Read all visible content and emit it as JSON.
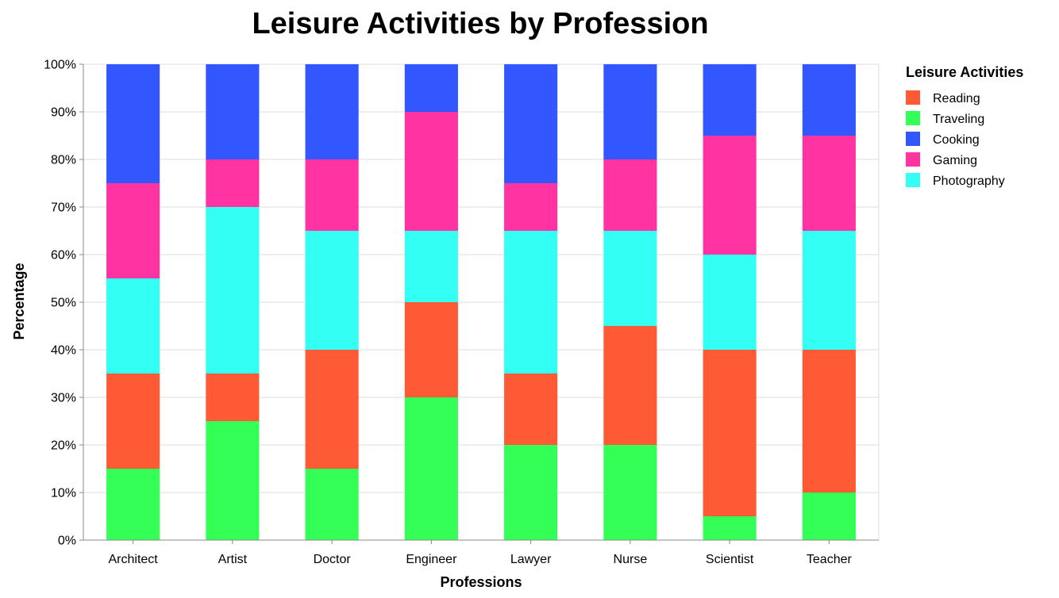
{
  "chart_data": {
    "type": "bar",
    "stacked": true,
    "normalized": true,
    "title": "Leisure Activities by Profession",
    "xlabel": "Professions",
    "ylabel": "Percentage",
    "ylim": [
      0,
      100
    ],
    "y_ticks": [
      "0%",
      "10%",
      "20%",
      "30%",
      "40%",
      "50%",
      "60%",
      "70%",
      "80%",
      "90%",
      "100%"
    ],
    "grid": true,
    "legend_title": "Leisure Activities",
    "legend_position": "right",
    "categories": [
      "Architect",
      "Artist",
      "Doctor",
      "Engineer",
      "Lawyer",
      "Nurse",
      "Scientist",
      "Teacher"
    ],
    "stack_order": [
      "Traveling",
      "Reading",
      "Photography",
      "Gaming",
      "Cooking"
    ],
    "series": [
      {
        "name": "Reading",
        "color": "#ff5a36",
        "values": [
          20,
          10,
          25,
          20,
          15,
          25,
          35,
          30
        ]
      },
      {
        "name": "Traveling",
        "color": "#33ff57",
        "values": [
          15,
          25,
          15,
          30,
          20,
          20,
          5,
          10
        ]
      },
      {
        "name": "Cooking",
        "color": "#3357ff",
        "values": [
          25,
          20,
          20,
          10,
          25,
          20,
          15,
          15
        ]
      },
      {
        "name": "Gaming",
        "color": "#ff33a1",
        "values": [
          20,
          10,
          15,
          25,
          10,
          15,
          25,
          20
        ]
      },
      {
        "name": "Photography",
        "color": "#33fff5",
        "values": [
          20,
          35,
          25,
          15,
          30,
          20,
          20,
          25
        ]
      }
    ]
  }
}
